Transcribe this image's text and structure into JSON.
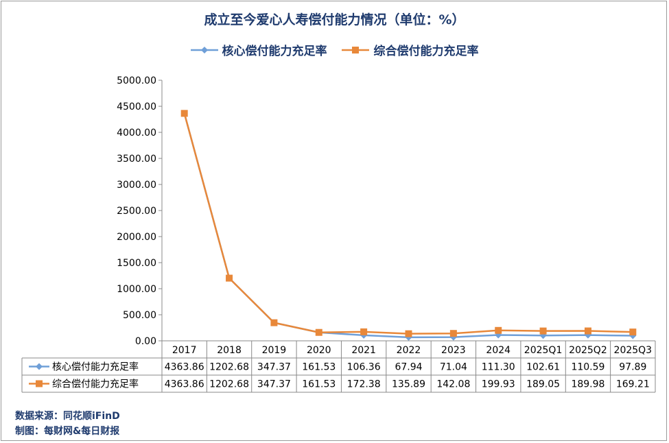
{
  "chart_data": {
    "type": "line",
    "title": "成立至今爱心人寿偿付能力情况（单位：%）",
    "categories": [
      "2017",
      "2018",
      "2019",
      "2020",
      "2021",
      "2022",
      "2023",
      "2024",
      "2025Q1",
      "2025Q2",
      "2025Q3"
    ],
    "series": [
      {
        "name": "核心偿付能力充足率",
        "color": "#6f9fd8",
        "marker": "diamond",
        "values": [
          4363.86,
          1202.68,
          347.37,
          161.53,
          106.36,
          67.94,
          71.04,
          111.3,
          102.61,
          110.59,
          97.89
        ],
        "labels": [
          "4363.86",
          "1202.68",
          "347.37",
          "161.53",
          "106.36",
          "67.94",
          "71.04",
          "111.30",
          "102.61",
          "110.59",
          "97.89"
        ]
      },
      {
        "name": "综合偿付能力充足率",
        "color": "#e8883a",
        "marker": "square",
        "values": [
          4363.86,
          1202.68,
          347.37,
          161.53,
          172.38,
          135.89,
          142.08,
          199.93,
          189.05,
          189.98,
          169.21
        ],
        "labels": [
          "4363.86",
          "1202.68",
          "347.37",
          "161.53",
          "172.38",
          "135.89",
          "142.08",
          "199.93",
          "189.05",
          "189.98",
          "169.21"
        ]
      }
    ],
    "ylim": [
      0,
      5000
    ],
    "yticks": [
      "0.00",
      "500.00",
      "1000.00",
      "1500.00",
      "2000.00",
      "2500.00",
      "3000.00",
      "3500.00",
      "4000.00",
      "4500.00",
      "5000.00"
    ],
    "grid": false,
    "legend": "top"
  },
  "source": {
    "data_source": "数据来源：同花顺iFinD",
    "made_by": "制图：每财网&每日财报"
  }
}
